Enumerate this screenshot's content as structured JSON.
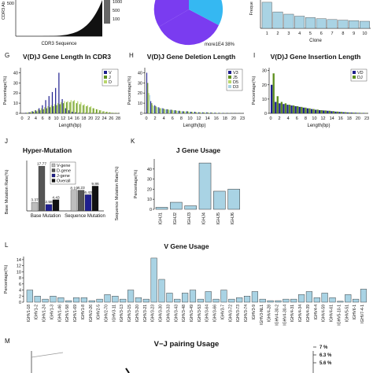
{
  "panel_letters": {
    "g": "G",
    "h": "H",
    "i": "I",
    "j": "J",
    "k": "K",
    "l": "L",
    "m": "M"
  },
  "colors": {
    "dark_blue": "#1f1f8f",
    "light_blue": "#a9d3e4",
    "green": "#5e8f1e",
    "light_green": "#b8d66b",
    "gray": "#bdbdbd",
    "dark_gray": "#555555",
    "black": "#111111",
    "pie_purple": "#7a3cf0",
    "pie_blue": "#35b8f2"
  },
  "top": {
    "cdr3_xlabel": "CDR3 Sequence",
    "cdr3_ylabel_partial": "CDR3 Ab",
    "cdr3_ytick_top": "500",
    "cdr3_legend_ticks": [
      "1000",
      "500",
      "100"
    ],
    "pie_label": "more1E4 38%",
    "clone_xlabel": "Clone",
    "clone_ylabel_partial": "Freque",
    "clone_ticks": [
      "1",
      "2",
      "3",
      "4",
      "5",
      "6",
      "7",
      "8",
      "9",
      "10"
    ],
    "clone_values": [
      0.92,
      0.58,
      0.5,
      0.43,
      0.38,
      0.34,
      0.31,
      0.29,
      0.27,
      0.25
    ]
  },
  "chart_data": [
    {
      "id": "g",
      "type": "bar",
      "title": "V(D)J Gene Length In CDR3",
      "xlabel": "Length(bp)",
      "ylabel": "Percentage(%)",
      "yticks": [
        0,
        10,
        20,
        30,
        40
      ],
      "ylim": [
        0,
        45
      ],
      "xticks": [
        "0",
        "2",
        "4",
        "6",
        "8",
        "10",
        "12",
        "14",
        "16",
        "18",
        "20",
        "22",
        "24",
        "26",
        "28"
      ],
      "legend": [
        "V",
        "J",
        "D"
      ],
      "series": [
        {
          "name": "V",
          "color": "#1f1f8f",
          "values": [
            0,
            0.5,
            1,
            2,
            3,
            5,
            8,
            13,
            17,
            21,
            25,
            40,
            14,
            5,
            3,
            1.5,
            1,
            0.5,
            0.3,
            0.2,
            0,
            0,
            0,
            0,
            0,
            0,
            0,
            0,
            0
          ]
        },
        {
          "name": "J",
          "color": "#5e8f1e",
          "values": [
            0,
            0.5,
            1,
            1.5,
            2,
            3,
            4,
            5,
            6,
            7,
            8,
            9,
            10,
            11,
            11,
            12,
            10,
            9,
            8,
            7,
            6,
            5,
            4,
            3,
            2,
            1.5,
            1,
            0.5,
            0.3
          ]
        },
        {
          "name": "D",
          "color": "#b8d66b",
          "values": [
            0,
            1,
            2,
            3,
            4,
            5,
            6,
            7,
            8,
            9,
            10,
            11,
            12,
            12,
            13,
            13,
            12,
            11,
            9,
            8,
            7,
            5,
            4,
            3,
            2,
            1.5,
            1,
            0.5,
            0.3
          ]
        }
      ]
    },
    {
      "id": "h",
      "type": "bar",
      "title": "V(D)J Gene Deletion Length",
      "xlabel": "Length(bp)",
      "ylabel": "Percentage(%)",
      "yticks": [
        0,
        10,
        20,
        30,
        40
      ],
      "ylim": [
        0,
        45
      ],
      "xticks": [
        "0",
        "2",
        "4",
        "6",
        "8",
        "10",
        "12",
        "14",
        "16",
        "18",
        "20",
        "23"
      ],
      "legend": [
        "V3",
        "J5",
        "D5",
        "D3"
      ],
      "series": [
        {
          "name": "V3",
          "color": "#1f1f8f",
          "values": [
            40,
            12,
            8,
            6,
            5,
            4,
            3.5,
            3,
            2.5,
            2,
            2,
            1.5,
            1.5,
            1,
            1,
            1,
            0.8,
            0.6,
            0.5,
            0.4,
            0.3,
            0.2,
            0.2,
            0.1
          ]
        },
        {
          "name": "J5",
          "color": "#5e8f1e",
          "values": [
            30,
            10,
            7,
            5,
            4.5,
            4,
            3.5,
            3,
            2.5,
            2,
            2,
            1.5,
            1.2,
            1,
            0.9,
            0.8,
            0.7,
            0.5,
            0.4,
            0.3,
            0.2,
            0.2,
            0.1,
            0.1
          ]
        },
        {
          "name": "D5",
          "color": "#b8d66b",
          "values": [
            20,
            8,
            6,
            5,
            4,
            3.5,
            3,
            2.5,
            2,
            1.8,
            1.5,
            1.2,
            1,
            0.9,
            0.8,
            0.6,
            0.5,
            0.4,
            0.3,
            0.2,
            0.2,
            0.1,
            0.1,
            0.1
          ]
        },
        {
          "name": "D3",
          "color": "#a9d3e4",
          "values": [
            18,
            7,
            6,
            5,
            4,
            3.5,
            3,
            2.5,
            2,
            1.8,
            1.5,
            1.2,
            1,
            0.9,
            0.8,
            0.6,
            0.5,
            0.4,
            0.3,
            0.2,
            0.2,
            0.1,
            0.1,
            0.1
          ]
        }
      ]
    },
    {
      "id": "i",
      "type": "bar",
      "title": "V(D)J Gene Insertion Length",
      "xlabel": "Length(bp)",
      "ylabel": "Percentage(%)",
      "yticks": [
        0,
        10,
        20,
        30
      ],
      "ylim": [
        0,
        32
      ],
      "xticks": [
        "0",
        "2",
        "4",
        "6",
        "8",
        "10",
        "12",
        "14",
        "16",
        "18",
        "20",
        "23"
      ],
      "legend": [
        "VD",
        "DJ"
      ],
      "series": [
        {
          "name": "VD",
          "color": "#1f1f8f",
          "values": [
            20,
            8,
            7,
            6.5,
            6,
            5.5,
            5,
            4.5,
            4,
            3.5,
            3,
            2.5,
            2.2,
            2,
            1.8,
            1.5,
            1.2,
            1,
            0.8,
            0.6,
            0.5,
            0.4,
            0.3,
            0.2
          ]
        },
        {
          "name": "DJ",
          "color": "#5e8f1e",
          "values": [
            28,
            12,
            8,
            7,
            6,
            5.5,
            5,
            4.5,
            4,
            3.5,
            3,
            2.6,
            2.2,
            2,
            1.8,
            1.5,
            1.2,
            1,
            0.8,
            0.6,
            0.5,
            0.4,
            0.3,
            0.2
          ]
        }
      ]
    },
    {
      "id": "j",
      "type": "bar",
      "title": "Hyper-Mutation",
      "xlabel": "",
      "ylabel": "Base Mutation Rate(%)",
      "ylabel2": "Sequence Mutation Rate(%)",
      "ylim": [
        0,
        20
      ],
      "categories": [
        "Base Mutation",
        "Sequence Mutation"
      ],
      "legend": [
        "V-gene",
        "D-gene",
        "J-gene",
        "Overall"
      ],
      "series": [
        {
          "name": "V-gene",
          "color": "#bdbdbd",
          "values": [
            3.37,
            8.19
          ]
        },
        {
          "name": "D-gene",
          "color": "#555555",
          "values": [
            17.77,
            8.23
          ]
        },
        {
          "name": "J-gene",
          "color": "#1f1f8f",
          "values": [
            2.58,
            6.43
          ]
        },
        {
          "name": "Overall",
          "color": "#111111",
          "values": [
            4.43,
            9.86
          ]
        }
      ],
      "value_labels": [
        [
          "3.37",
          "17.77",
          "2.58",
          "4.43"
        ],
        [
          "8.19",
          "8.23",
          "6.43",
          "9.86"
        ]
      ]
    },
    {
      "id": "k",
      "type": "bar",
      "title": "J Gene Usage",
      "ylabel": "Percentage(%)",
      "yticks": [
        0,
        10,
        20,
        30,
        40
      ],
      "ylim": [
        0,
        50
      ],
      "categories": [
        "IGHJ1",
        "IGHJ2",
        "IGHJ3",
        "IGHJ4",
        "IGHJ5",
        "IGHJ6"
      ],
      "values": [
        2,
        7,
        3.5,
        46,
        18,
        20
      ],
      "color": "#a9d3e4"
    },
    {
      "id": "l",
      "type": "bar",
      "title": "V Gene Usage",
      "ylabel": "Percentage(%)",
      "yticks": [
        0,
        2,
        4,
        6,
        8,
        10,
        12,
        14
      ],
      "ylim": [
        0,
        15
      ],
      "categories": [
        "IGHV1-18",
        "IGHV1-2",
        "IGHV1-24",
        "IGHV1-3",
        "IGHV1-46",
        "IGHV1-58",
        "IGHV1-69",
        "IGHV1-8",
        "IGHV2-26",
        "IGHV2-5",
        "IGHV2-70",
        "IGHV3-11",
        "IGHV3-13",
        "IGHV3-15",
        "IGHV3-20",
        "IGHV3-21",
        "IGHV3-23",
        "IGHV3-30",
        "IGHV3-33",
        "IGHV3-43",
        "IGHV3-48",
        "IGHV3-49",
        "IGHV3-53",
        "IGHV3-64",
        "IGHV3-66",
        "IGHV3-7",
        "IGHV3-72",
        "IGHV3-73",
        "IGHV3-74",
        "IGHV3-9",
        "IGHV3-NL1",
        "IGHV4-28",
        "IGHV4-30-2",
        "IGHV4-30-4",
        "IGHV4-31",
        "IGHV4-34",
        "IGHV4-39",
        "IGHV4-4",
        "IGHV4-59",
        "IGHV4-61",
        "IGHV5-10-1",
        "IGHV5-51",
        "IGHV6-1",
        "IGHV7-4-1"
      ],
      "values": [
        4,
        2,
        1,
        2,
        1.5,
        0.5,
        1.5,
        1.5,
        0.5,
        1,
        2.5,
        2,
        1,
        4,
        1.5,
        1,
        14.5,
        7.5,
        3,
        1,
        3,
        4,
        1,
        3.5,
        1,
        4,
        1,
        1.5,
        2,
        3.5,
        1,
        0.5,
        0.5,
        1,
        1,
        2.5,
        3.5,
        1.5,
        3,
        1.5,
        0.3,
        2.5,
        1,
        4.3
      ],
      "color": "#a9d3e4"
    },
    {
      "id": "m",
      "type": "area",
      "title": "V−J pairing Usage",
      "legend_ticks": [
        "7 %",
        "6.3 %",
        "5.6 %"
      ]
    }
  ]
}
